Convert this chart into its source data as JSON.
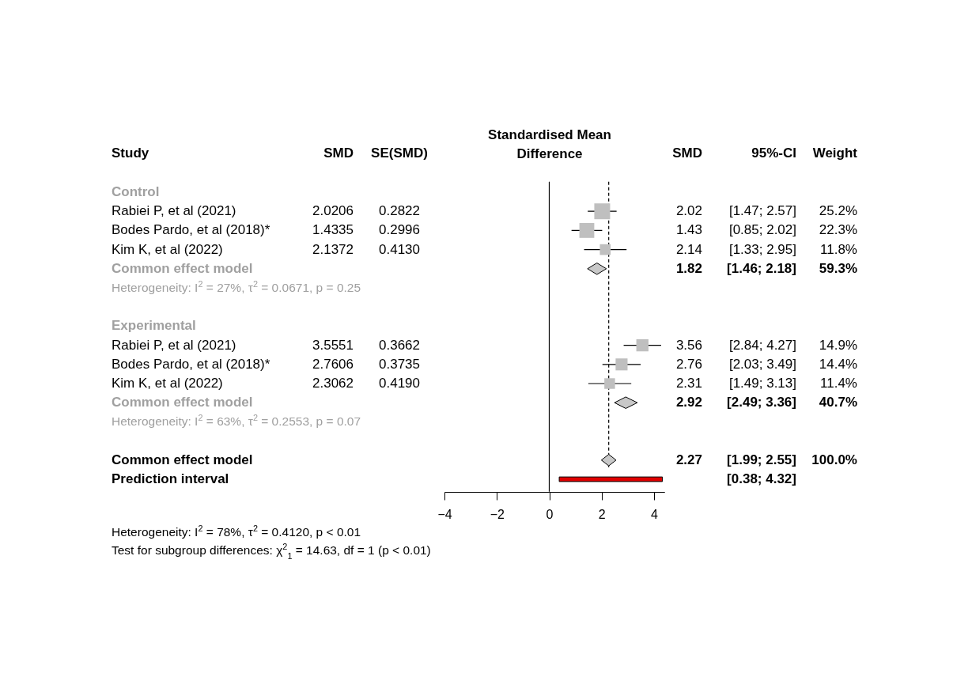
{
  "chart_data": {
    "type": "scatter",
    "orientation": "horizontal",
    "title": "Standardised Mean Difference",
    "categories": [
      "Control",
      "Rabiei P, et al (2021)",
      "Bodes Pardo, et al (2018)*",
      "Kim K, et al (2022)",
      "Common effect model",
      "Heterogeneity: I$^{2}$ = 27%, τ$^{2}$ = 0.0671, p = 0.25",
      null,
      "Experimental",
      "Rabiei P, et al (2021)",
      "Bodes Pardo, et al (2018)*",
      "Kim K, et al (2022)",
      "Common effect model",
      "Heterogeneity: I$^{2}$ = 63%, τ$^{2}$ = 0.2553, p = 0.07",
      null,
      "Common effect model",
      "Prediction interval"
    ],
    "series": [
      {
        "type": "bubble",
        "marker": "square",
        "color": "#bfbfbf",
        "values": [
          null,
          2.0206,
          1.4335,
          2.1372,
          null,
          null,
          null,
          null,
          3.5551,
          2.7606,
          2.3062,
          null,
          null,
          null,
          null,
          null
        ],
        "sizes": [
          null,
          1,
          0.885,
          0.468,
          null,
          null,
          null,
          null,
          0.591,
          0.571,
          0.452,
          null,
          null,
          null,
          null,
          null
        ],
        "errors": [
          null,
          [
            1.47,
            2.57
          ],
          [
            0.85,
            2.02
          ],
          [
            1.33,
            2.95
          ],
          null,
          null,
          null,
          null,
          [
            2.84,
            4.27
          ],
          [
            2.03,
            3.49
          ],
          [
            1.49,
            3.13
          ],
          null,
          null,
          null,
          null,
          null
        ]
      },
      {
        "marker": "diamond",
        "color": "#c8c8c8",
        "values": [
          null,
          null,
          null,
          null,
          1.82,
          null,
          null,
          null,
          null,
          null,
          null,
          2.92,
          null,
          null,
          2.27,
          null
        ],
        "errors": [
          null,
          null,
          null,
          null,
          [
            1.46,
            2.18
          ],
          null,
          null,
          null,
          null,
          null,
          null,
          [
            2.49,
            3.36
          ],
          null,
          null,
          [
            1.99,
            2.55
          ],
          null
        ]
      },
      {
        "type": "bar",
        "color": "#e00000",
        "values": [
          null,
          null,
          null,
          null,
          null,
          null,
          null,
          null,
          null,
          null,
          null,
          null,
          null,
          null,
          null,
          3.94
        ],
        "base": [
          null,
          null,
          null,
          null,
          null,
          null,
          null,
          null,
          null,
          null,
          null,
          null,
          null,
          null,
          null,
          0.38
        ]
      }
    ],
    "xlim": [
      -4,
      4.4
    ],
    "xticks": [
      -4,
      -2,
      0,
      2,
      4
    ],
    "ref_lines": [
      {
        "axis": "x",
        "value": 0,
        "line_style": "solid"
      },
      {
        "axis": "x",
        "value": 2.27,
        "line_style": "dashed"
      }
    ],
    "annotations": [
      "Study",
      "SMD",
      "SE(SMD)",
      "SMD",
      "95%-CI",
      "Weight",
      "2.0206",
      "0.2822",
      "2.02",
      "[1.47; 2.57]",
      "25.2%",
      "1.4335",
      "0.2996",
      "1.43",
      "[0.85; 2.02]",
      "22.3%",
      "2.1372",
      "0.4130",
      "2.14",
      "[1.33; 2.95]",
      "11.8%",
      "1.82",
      "[1.46; 2.18]",
      "59.3%",
      "3.5551",
      "0.3662",
      "3.56",
      "[2.84; 4.27]",
      "14.9%",
      "2.7606",
      "0.3735",
      "2.76",
      "[2.03; 3.49]",
      "14.4%",
      "2.3062",
      "0.4190",
      "2.31",
      "[1.49; 3.13]",
      "11.4%",
      "2.92",
      "[2.49; 3.36]",
      "40.7%",
      "2.27",
      "[1.99; 2.55]",
      "100.0%",
      "[0.38; 4.32]",
      "Heterogeneity: I$^{2}$ = 78%, τ$^{2}$ = 0.4120, p < 0.01",
      "Test for subgroup differences: χ$^{2}$$_{1}$ = 14.63, df = 1 (p < 0.01)"
    ]
  }
}
